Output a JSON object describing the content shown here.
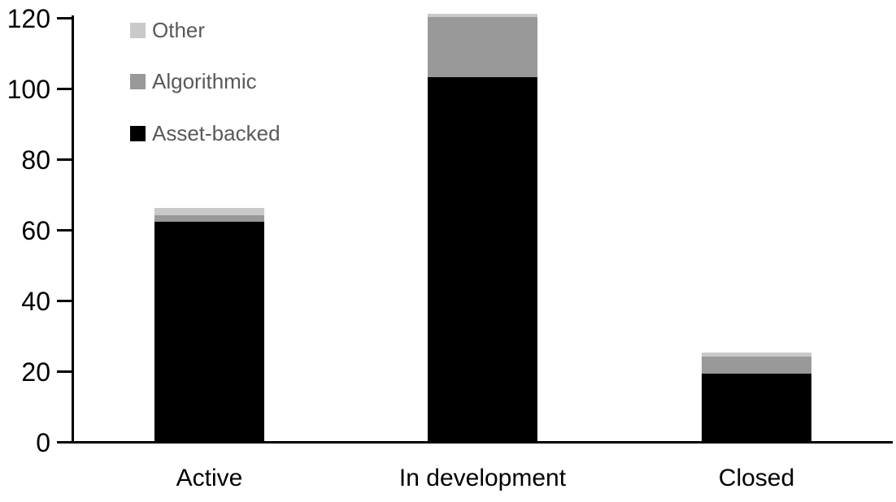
{
  "chart_data": {
    "type": "bar",
    "stacked": true,
    "title": "",
    "xlabel": "",
    "ylabel": "",
    "categories": [
      "Active",
      "In development",
      "Closed"
    ],
    "series": [
      {
        "name": "Asset-backed",
        "color": "#000000",
        "values": [
          62,
          103,
          19
        ]
      },
      {
        "name": "Algorithmic",
        "color": "#999999",
        "values": [
          2,
          17,
          5
        ]
      },
      {
        "name": "Other",
        "color": "#c9c9c9",
        "values": [
          2,
          1,
          1
        ]
      }
    ],
    "totals": [
      66,
      121,
      25
    ],
    "ylim": [
      0,
      120
    ],
    "yticks": [
      0,
      20,
      40,
      60,
      80,
      100,
      120
    ],
    "grid": false,
    "legend_position": "top-left",
    "legend_order": [
      "Other",
      "Algorithmic",
      "Asset-backed"
    ]
  },
  "legend": {
    "text_color": "#595959"
  },
  "axis": {
    "line_color": "#000000",
    "tick_label_color": "#000000"
  }
}
